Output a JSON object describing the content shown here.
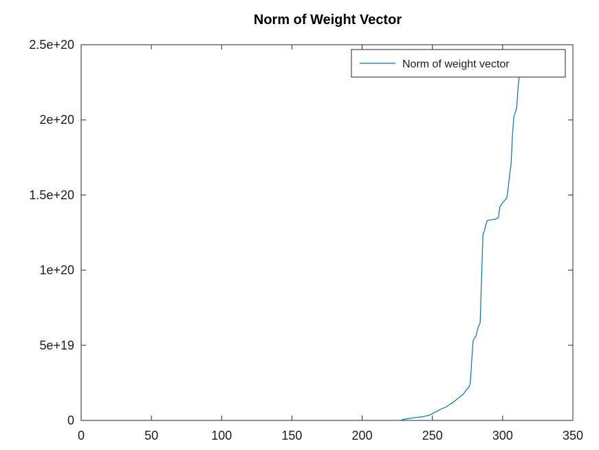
{
  "chart_data": {
    "type": "line",
    "title": "Norm of Weight Vector",
    "xlabel": "",
    "ylabel": "",
    "xlim": [
      0,
      350
    ],
    "ylim": [
      0,
      2.5e+20
    ],
    "x_ticks": [
      0,
      50,
      100,
      150,
      200,
      250,
      300,
      350
    ],
    "x_tick_labels": [
      "0",
      "50",
      "100",
      "150",
      "200",
      "250",
      "300",
      "350"
    ],
    "y_ticks": [
      0,
      5e+19,
      1e+20,
      1.5e+20,
      2e+20,
      2.5e+20
    ],
    "y_tick_labels": [
      "0",
      "5e+19",
      "1e+20",
      "1.5e+20",
      "2e+20",
      "2.5e+20"
    ],
    "grid": false,
    "legend_position": "top-right",
    "series": [
      {
        "name": "Norm of weight vector",
        "color": "#0072bd",
        "points": [
          [
            226,
            0
          ],
          [
            228,
            2e+17
          ],
          [
            230,
            8e+17
          ],
          [
            232,
            1.1e+18
          ],
          [
            234,
            1.4e+18
          ],
          [
            236,
            1.7e+18
          ],
          [
            238,
            1.9e+18
          ],
          [
            240,
            2.1e+18
          ],
          [
            242,
            2.3e+18
          ],
          [
            244,
            2.6e+18
          ],
          [
            246,
            3.1e+18
          ],
          [
            248,
            3.5e+18
          ],
          [
            250,
            4.5e+18
          ],
          [
            252,
            5.5e+18
          ],
          [
            254,
            6.5e+18
          ],
          [
            256,
            7.5e+18
          ],
          [
            258,
            8.3e+18
          ],
          [
            260,
            9e+18
          ],
          [
            262,
            1.05e+19
          ],
          [
            264,
            1.15e+19
          ],
          [
            266,
            1.3e+19
          ],
          [
            268,
            1.45e+19
          ],
          [
            270,
            1.6e+19
          ],
          [
            272,
            1.75e+19
          ],
          [
            274,
            2e+19
          ],
          [
            276,
            2.2e+19
          ],
          [
            277,
            2.5e+19
          ],
          [
            278,
            4e+19
          ],
          [
            279,
            5.3e+19
          ],
          [
            280,
            5.5e+19
          ],
          [
            281,
            5.6e+19
          ],
          [
            282,
            6e+19
          ],
          [
            283,
            6.3e+19
          ],
          [
            284,
            6.5e+19
          ],
          [
            285,
            9.5e+19
          ],
          [
            286,
            1.24e+20
          ],
          [
            287,
            1.26e+20
          ],
          [
            288,
            1.3e+20
          ],
          [
            289,
            1.33e+20
          ],
          [
            292,
            1.335e+20
          ],
          [
            295,
            1.34e+20
          ],
          [
            297,
            1.35e+20
          ],
          [
            298,
            1.42e+20
          ],
          [
            300,
            1.45e+20
          ],
          [
            303,
            1.48e+20
          ],
          [
            304,
            1.55e+20
          ],
          [
            305,
            1.64e+20
          ],
          [
            306,
            1.7e+20
          ],
          [
            307,
            1.9e+20
          ],
          [
            308,
            2.02e+20
          ],
          [
            310,
            2.08e+20
          ],
          [
            311,
            2.22e+20
          ],
          [
            312,
            2.3e+20
          ],
          [
            313,
            2.36e+20
          ],
          [
            314,
            2.4e+20
          ],
          [
            315,
            2.43e+20
          ],
          [
            318,
            2.435e+20
          ],
          [
            322,
            2.44e+20
          ],
          [
            325,
            2.41e+20
          ],
          [
            327,
            2.4e+20
          ],
          [
            329,
            2.43e+20
          ],
          [
            332,
            2.44e+20
          ],
          [
            335,
            2.45e+20
          ]
        ]
      }
    ]
  }
}
